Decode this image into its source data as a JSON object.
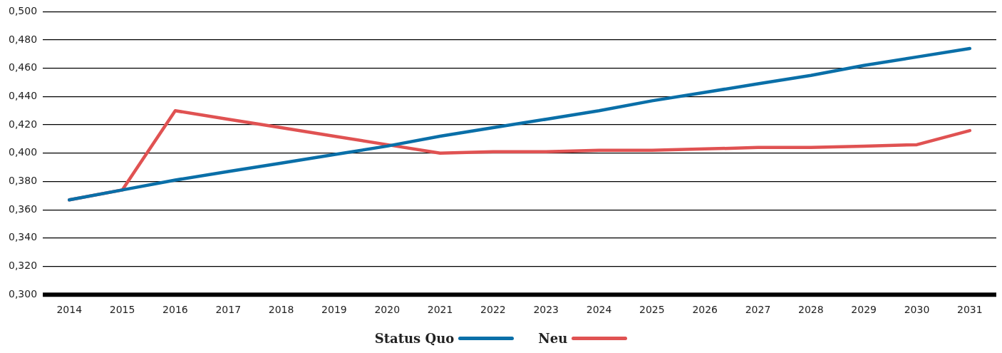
{
  "chart_data": {
    "type": "line",
    "categories": [
      "2014",
      "2015",
      "2016",
      "2017",
      "2018",
      "2019",
      "2020",
      "2021",
      "2022",
      "2023",
      "2024",
      "2025",
      "2026",
      "2027",
      "2028",
      "2029",
      "2030",
      "2031"
    ],
    "series": [
      {
        "name": "Status Quo",
        "color": "#0a6fa8",
        "values": [
          0.367,
          0.374,
          0.381,
          0.387,
          0.393,
          0.399,
          0.405,
          0.412,
          0.418,
          0.424,
          0.43,
          0.437,
          0.443,
          0.449,
          0.455,
          0.462,
          0.468,
          0.474
        ]
      },
      {
        "name": "Neu",
        "color": "#e05252",
        "values": [
          0.367,
          0.374,
          0.43,
          0.424,
          0.418,
          0.412,
          0.406,
          0.4,
          0.401,
          0.401,
          0.402,
          0.402,
          0.403,
          0.404,
          0.404,
          0.405,
          0.406,
          0.416
        ]
      }
    ],
    "ylim": [
      0.3,
      0.5
    ],
    "yticks": [
      {
        "value": 0.3,
        "label": "0,300"
      },
      {
        "value": 0.32,
        "label": "0,320"
      },
      {
        "value": 0.34,
        "label": "0,340"
      },
      {
        "value": 0.36,
        "label": "0,360"
      },
      {
        "value": 0.38,
        "label": "0,380"
      },
      {
        "value": 0.4,
        "label": "0,400"
      },
      {
        "value": 0.42,
        "label": "0,420"
      },
      {
        "value": 0.44,
        "label": "0,440"
      },
      {
        "value": 0.46,
        "label": "0,460"
      },
      {
        "value": 0.48,
        "label": "0,480"
      },
      {
        "value": 0.5,
        "label": "0,500"
      }
    ],
    "grid": "y",
    "legend": "bottom",
    "marker": "none",
    "line_style": "solid"
  }
}
